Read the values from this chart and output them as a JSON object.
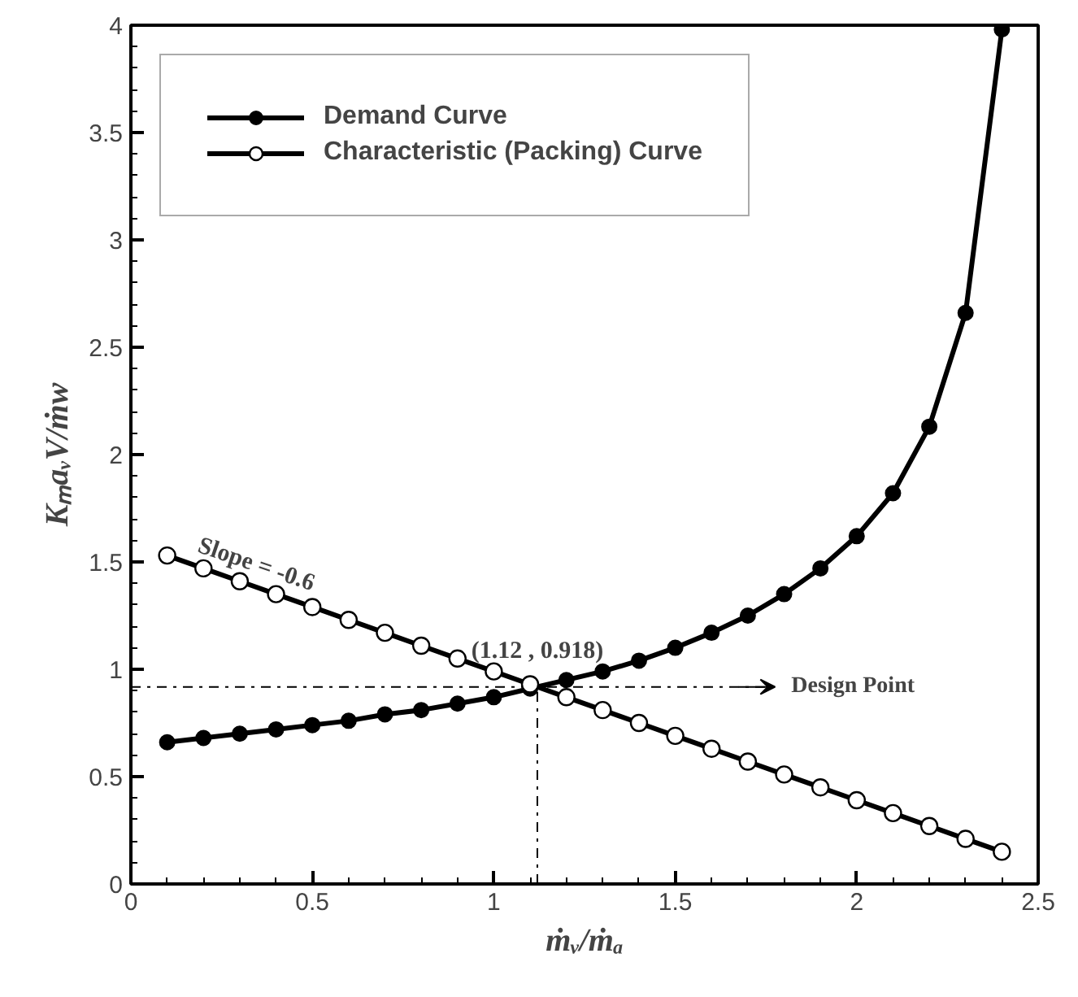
{
  "chart_data": {
    "type": "line",
    "xlabel": "ṁᵥ/ṁₐ",
    "ylabel": "KₘaᵥV/ṁw",
    "x": [
      0.1,
      0.2,
      0.3,
      0.4,
      0.5,
      0.6,
      0.7,
      0.8,
      0.9,
      1.0,
      1.1,
      1.2,
      1.3,
      1.4,
      1.5,
      1.6,
      1.7,
      1.8,
      1.9,
      2.0,
      2.1,
      2.2,
      2.3,
      2.4
    ],
    "series": [
      {
        "name": "Demand Curve",
        "color": "#000000",
        "marker": "circle",
        "values": [
          0.66,
          0.68,
          0.7,
          0.72,
          0.74,
          0.76,
          0.79,
          0.81,
          0.84,
          0.87,
          0.91,
          0.95,
          0.99,
          1.04,
          1.1,
          1.17,
          1.25,
          1.35,
          1.47,
          1.62,
          1.82,
          2.13,
          2.66,
          3.98
        ]
      },
      {
        "name": "Characteristic (Packing) Curve",
        "color": "#000000",
        "marker": "circle_open",
        "values": [
          1.53,
          1.47,
          1.41,
          1.35,
          1.29,
          1.23,
          1.17,
          1.11,
          1.05,
          0.99,
          0.93,
          0.87,
          0.81,
          0.75,
          0.69,
          0.63,
          0.57,
          0.51,
          0.45,
          0.39,
          0.33,
          0.27,
          0.21,
          0.15
        ]
      }
    ],
    "xlim": [
      0,
      2.5
    ],
    "ylim": [
      0,
      4
    ],
    "xticks": [
      0,
      0.5,
      1,
      1.5,
      2,
      2.5
    ],
    "yticks": [
      0,
      0.5,
      1,
      1.5,
      2,
      2.5,
      3,
      3.5,
      4
    ],
    "ref_lines": [
      {
        "axis": "y",
        "value": 0.918,
        "label": "Design Point"
      },
      {
        "axis": "x",
        "value": 1.12,
        "label": null
      }
    ],
    "annotations": [
      {
        "text": "(1.12 , 0.918)",
        "x": 1.12,
        "y": 0.918
      },
      "Slope = -0.6"
    ],
    "legend": "top left",
    "grid": false
  }
}
